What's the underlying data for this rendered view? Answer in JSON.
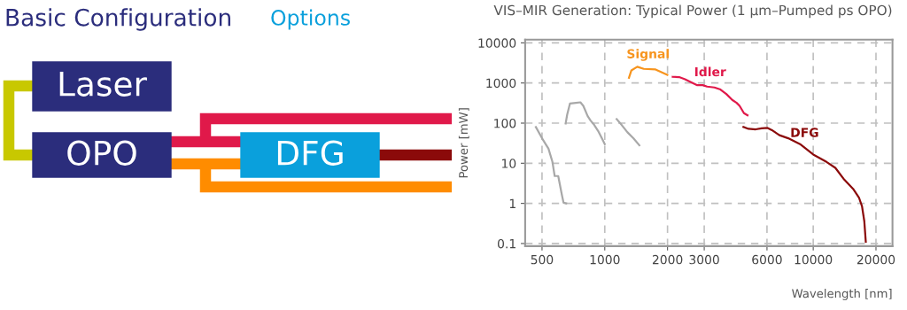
{
  "chart_data": [
    {
      "type": "other",
      "annotations": [
        "Basic Configuration",
        "Options",
        "Laser",
        "OPO",
        "DFG"
      ]
    },
    {
      "type": "line",
      "title": "VIS–MIR Generation: Typical Power (1 µm–Pumped ps OPO)",
      "xlabel": "Wavelength [nm]",
      "ylabel": "Power [mW]",
      "log": "xy",
      "grid": true,
      "xlim": [
        415,
        24000
      ],
      "ylim": [
        0.086,
        12000
      ],
      "xticks": [
        500,
        1000,
        2000,
        3000,
        6000,
        10000,
        20000
      ],
      "yticks": [
        0.1,
        1,
        10,
        100,
        1000,
        10000
      ],
      "series": [
        {
          "color": "#a8a8a8",
          "x": [
            467,
            500,
            537,
            561,
            575,
            598,
            622,
            634,
            653
          ],
          "values": [
            80,
            42,
            23,
            10.8,
            4.8,
            4.8,
            1.67,
            1.04,
            1.0
          ]
        },
        {
          "color": "#a8a8a8",
          "x": [
            649,
            660,
            681,
            727,
            764,
            789,
            828,
            855,
            890,
            929,
            968,
            1000
          ],
          "values": [
            98,
            162,
            309,
            320,
            330,
            270,
            149,
            116,
            90,
            64,
            42,
            30
          ]
        },
        {
          "color": "#a8a8a8",
          "x": [
            1140,
            1205,
            1285,
            1371,
            1465
          ],
          "values": [
            126,
            90,
            59,
            42,
            28
          ]
        },
        {
          "name": "Signal",
          "color": "#f7941d",
          "x": [
            1306,
            1342,
            1432,
            1538,
            1753,
            1996
          ],
          "values": [
            1352,
            2065,
            2535,
            2250,
            2175,
            1600
          ]
        },
        {
          "name": "Idler",
          "color": "#e0194a",
          "x": [
            2118,
            2275,
            2427,
            2589,
            2764,
            2950,
            3097,
            3358,
            3587,
            3828,
            4085,
            4291,
            4433,
            4652,
            4839
          ],
          "values": [
            1422,
            1400,
            1242,
            1050,
            886,
            886,
            813,
            773,
            688,
            532,
            379,
            320,
            270,
            177,
            157
          ]
        },
        {
          "name": "DFG",
          "color": "#8b0a0a",
          "x": [
            4624,
            4889,
            5296,
            5659,
            6039,
            6338,
            6881,
            7585,
            8643,
            10000,
            11580,
            12766,
            14090,
            15530,
            16570,
            17140,
            17580,
            17870
          ],
          "values": [
            80,
            72,
            70,
            74.5,
            76,
            67,
            50,
            42,
            30,
            16.5,
            10.8,
            7.7,
            3.9,
            2.3,
            1.4,
            0.85,
            0.36,
            0.11
          ]
        }
      ]
    }
  ]
}
